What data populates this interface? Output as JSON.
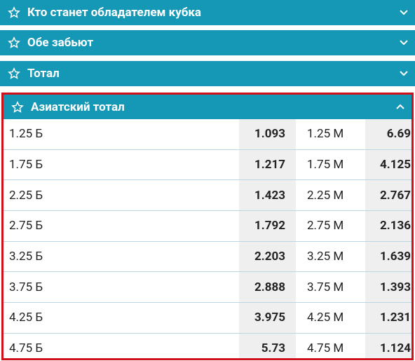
{
  "sections": [
    {
      "title": "Кто станет обладателем кубка"
    },
    {
      "title": "Обе забьют"
    },
    {
      "title": "Тотал"
    },
    {
      "title": "Азиатский тотал",
      "rows": [
        [
          "1.25 Б",
          "1.093",
          "1.25 М",
          "6.69"
        ],
        [
          "1.75 Б",
          "1.217",
          "1.75 М",
          "4.125"
        ],
        [
          "2.25 Б",
          "1.423",
          "2.25 М",
          "2.767"
        ],
        [
          "2.75 Б",
          "1.792",
          "2.75 М",
          "2.136"
        ],
        [
          "3.25 Б",
          "2.203",
          "3.25 М",
          "1.639"
        ],
        [
          "3.75 Б",
          "2.888",
          "3.75 М",
          "1.393"
        ],
        [
          "4.25 Б",
          "3.975",
          "4.25 М",
          "1.231"
        ],
        [
          "4.75 Б",
          "5.73",
          "4.75 М",
          "1.124"
        ]
      ]
    }
  ]
}
